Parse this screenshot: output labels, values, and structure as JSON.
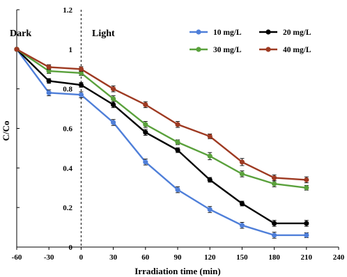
{
  "chart_data": {
    "type": "line",
    "xlabel": "Irradiation time (min)",
    "ylabel": "C/Co",
    "xlim": [
      -60,
      240
    ],
    "ylim": [
      0,
      1.2
    ],
    "x_ticks": [
      -60,
      -30,
      0,
      30,
      60,
      90,
      120,
      150,
      180,
      210,
      240
    ],
    "y_ticks": [
      0,
      0.2,
      0.4,
      0.6,
      0.8,
      1,
      1.2
    ],
    "x_tick_labels": [
      "-60",
      "-30",
      "0",
      "30",
      "60",
      "90",
      "120",
      "150",
      "180",
      "210",
      "240"
    ],
    "y_tick_labels": [
      "0",
      "0.2",
      "0.4",
      "0.6",
      "0.8",
      "1",
      "1.2"
    ],
    "region_labels": {
      "dark": "Dark",
      "light": "Light"
    },
    "divider_x": 0,
    "grid": false,
    "legend_position": "top-right",
    "x": [
      -60,
      -30,
      0,
      30,
      60,
      90,
      120,
      150,
      180,
      210
    ],
    "series": [
      {
        "name": "10 mg/L",
        "color": "#4f7fd9",
        "values": [
          1.0,
          0.78,
          0.77,
          0.63,
          0.43,
          0.29,
          0.19,
          0.11,
          0.06,
          0.06
        ],
        "error": [
          0,
          0.015,
          0.015,
          0.015,
          0.015,
          0.015,
          0.015,
          0.015,
          0.015,
          0.012
        ]
      },
      {
        "name": "20 mg/L",
        "color": "#000000",
        "values": [
          1.0,
          0.84,
          0.82,
          0.72,
          0.58,
          0.49,
          0.34,
          0.22,
          0.12,
          0.12
        ],
        "error": [
          0,
          0.012,
          0.012,
          0.015,
          0.015,
          0.012,
          0.012,
          0.012,
          0.015,
          0.015
        ]
      },
      {
        "name": "30 mg/L",
        "color": "#5aa13c",
        "values": [
          1.0,
          0.89,
          0.88,
          0.75,
          0.62,
          0.53,
          0.46,
          0.37,
          0.32,
          0.3
        ],
        "error": [
          0,
          0.012,
          0.012,
          0.015,
          0.015,
          0.012,
          0.018,
          0.015,
          0.015,
          0.012
        ]
      },
      {
        "name": "40 mg/L",
        "color": "#9e3a22",
        "values": [
          1.0,
          0.91,
          0.9,
          0.8,
          0.72,
          0.62,
          0.56,
          0.43,
          0.35,
          0.34
        ],
        "error": [
          0,
          0.012,
          0.012,
          0.015,
          0.015,
          0.015,
          0.012,
          0.018,
          0.015,
          0.015
        ]
      }
    ]
  }
}
